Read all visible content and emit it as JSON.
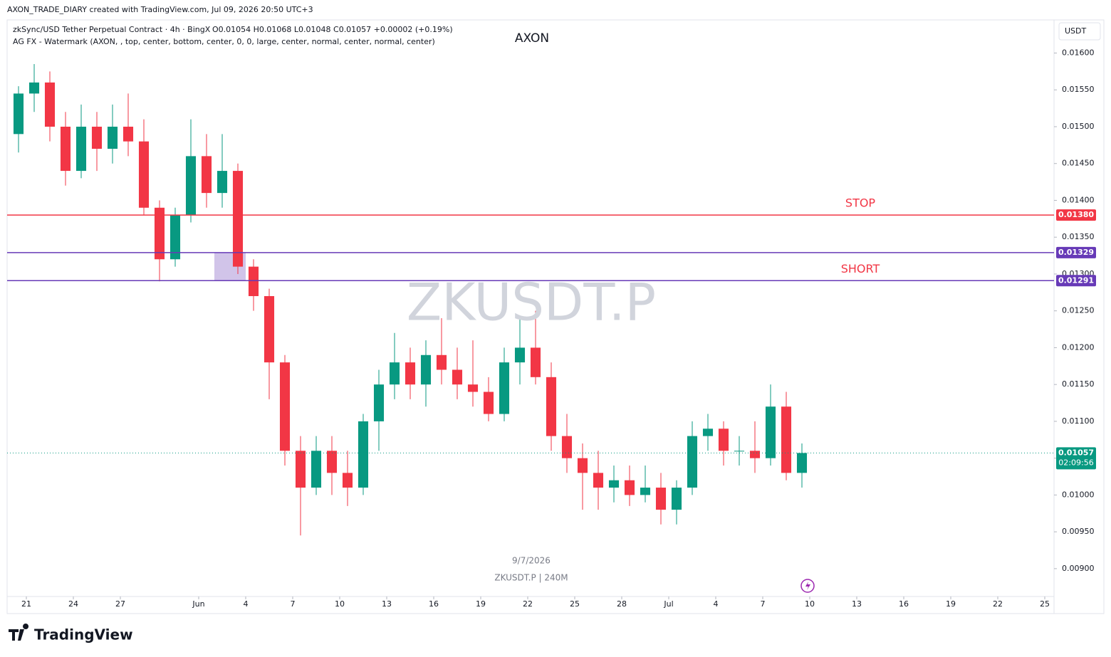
{
  "header": {
    "credit": "AXON_TRADE_DIARY created with TradingView.com, Jul 09, 2026 20:50 UTC+3",
    "symbol_line": "zkSync/USD Tether Perpetual Contract · 4h · BingX",
    "ohlc_line": "O0.01054 H0.01068 L0.01048 C0.01057 +0.00002 (+0.19%)",
    "indicator_line": "AG FX - Watermark (AXON, , top, center, bottom, center, 0, 0, large, center, normal, center, normal, center)",
    "watermark_top": "AXON",
    "watermark": "ZKUSDT.P",
    "watermark_date": "9/7/2026",
    "watermark_bottom": "ZKUSDT.P | 240M",
    "currency": "USDT",
    "logo": "TradingView"
  },
  "chart_data": {
    "type": "candlestick",
    "x": [
      "2026-05-20",
      "2026-05-21",
      "2026-05-22",
      "2026-05-23",
      "2026-05-24",
      "2026-05-25",
      "2026-05-26",
      "2026-05-27",
      "2026-05-28",
      "2026-05-29",
      "2026-05-30",
      "2026-05-31",
      "2026-06-01",
      "2026-06-02",
      "2026-06-03",
      "2026-06-04",
      "2026-06-05",
      "2026-06-06",
      "2026-06-07",
      "2026-06-08",
      "2026-06-09",
      "2026-06-10",
      "2026-06-11",
      "2026-06-12",
      "2026-06-13",
      "2026-06-14",
      "2026-06-15",
      "2026-06-16",
      "2026-06-17",
      "2026-06-18",
      "2026-06-19",
      "2026-06-20",
      "2026-06-21",
      "2026-06-22",
      "2026-06-23",
      "2026-06-24",
      "2026-06-25",
      "2026-06-26",
      "2026-06-27",
      "2026-06-28",
      "2026-06-29",
      "2026-06-30",
      "2026-07-01",
      "2026-07-02",
      "2026-07-03",
      "2026-07-04",
      "2026-07-05",
      "2026-07-06",
      "2026-07-07",
      "2026-07-08",
      "2026-07-09"
    ],
    "open": [
      0.0149,
      0.01545,
      0.0156,
      0.015,
      0.0144,
      0.015,
      0.0147,
      0.015,
      0.0148,
      0.0139,
      0.0132,
      0.0138,
      0.0146,
      0.0141,
      0.0144,
      0.0131,
      0.0127,
      0.0118,
      0.0106,
      0.0101,
      0.0106,
      0.0103,
      0.0101,
      0.011,
      0.0115,
      0.0118,
      0.0115,
      0.0119,
      0.0117,
      0.0115,
      0.0114,
      0.0111,
      0.0118,
      0.012,
      0.0116,
      0.0108,
      0.0105,
      0.0103,
      0.0101,
      0.0102,
      0.01,
      0.0101,
      0.0098,
      0.0101,
      0.0108,
      0.0109,
      0.0106,
      0.0106,
      0.0105,
      0.0112,
      0.0103
    ],
    "high": [
      0.01555,
      0.01585,
      0.01575,
      0.0152,
      0.0153,
      0.0152,
      0.0153,
      0.01545,
      0.0151,
      0.014,
      0.0139,
      0.0151,
      0.0149,
      0.0149,
      0.0145,
      0.0132,
      0.0128,
      0.0119,
      0.0108,
      0.0108,
      0.0108,
      0.0106,
      0.0111,
      0.0117,
      0.0122,
      0.012,
      0.0121,
      0.0124,
      0.012,
      0.0121,
      0.0116,
      0.012,
      0.0124,
      0.0125,
      0.0118,
      0.0111,
      0.0107,
      0.0106,
      0.0104,
      0.0104,
      0.0104,
      0.0103,
      0.0102,
      0.011,
      0.0111,
      0.011,
      0.0108,
      0.011,
      0.0115,
      0.0114,
      0.0107
    ],
    "low": [
      0.01465,
      0.0152,
      0.0148,
      0.0142,
      0.0143,
      0.0144,
      0.0145,
      0.0146,
      0.0138,
      0.0129,
      0.0131,
      0.0137,
      0.0139,
      0.0139,
      0.013,
      0.0125,
      0.0113,
      0.0104,
      0.00945,
      0.01,
      0.01,
      0.00985,
      0.01,
      0.0106,
      0.0113,
      0.0113,
      0.0112,
      0.0115,
      0.0113,
      0.0112,
      0.011,
      0.011,
      0.0115,
      0.0115,
      0.0106,
      0.0103,
      0.0098,
      0.0098,
      0.0099,
      0.00985,
      0.0099,
      0.0096,
      0.0096,
      0.01,
      0.0106,
      0.0104,
      0.0104,
      0.0103,
      0.0104,
      0.0102,
      0.0101
    ],
    "close": [
      0.01545,
      0.0156,
      0.015,
      0.0144,
      0.015,
      0.0147,
      0.015,
      0.0148,
      0.0139,
      0.0132,
      0.0138,
      0.0146,
      0.0141,
      0.0144,
      0.0131,
      0.0127,
      0.0118,
      0.0106,
      0.0101,
      0.0106,
      0.0103,
      0.0101,
      0.011,
      0.0115,
      0.0118,
      0.0115,
      0.0119,
      0.0117,
      0.0115,
      0.0114,
      0.0111,
      0.0118,
      0.012,
      0.0116,
      0.0108,
      0.0105,
      0.0103,
      0.0101,
      0.0102,
      0.01,
      0.0101,
      0.0098,
      0.0101,
      0.0108,
      0.0109,
      0.0106,
      0.0106,
      0.0105,
      0.0112,
      0.0103,
      0.01057
    ],
    "up_color": "#089981",
    "down_color": "#f23645",
    "xlim": [
      "2026-05-20",
      "2026-07-25"
    ],
    "xticks": [
      {
        "value": "2026-05-21",
        "label": "21"
      },
      {
        "value": "2026-05-24",
        "label": "24"
      },
      {
        "value": "2026-05-27",
        "label": "27"
      },
      {
        "value": "2026-06-01",
        "label": "Jun"
      },
      {
        "value": "2026-06-04",
        "label": "4"
      },
      {
        "value": "2026-06-07",
        "label": "7"
      },
      {
        "value": "2026-06-10",
        "label": "10"
      },
      {
        "value": "2026-06-13",
        "label": "13"
      },
      {
        "value": "2026-06-16",
        "label": "16"
      },
      {
        "value": "2026-06-19",
        "label": "19"
      },
      {
        "value": "2026-06-22",
        "label": "22"
      },
      {
        "value": "2026-06-25",
        "label": "25"
      },
      {
        "value": "2026-06-28",
        "label": "28"
      },
      {
        "value": "2026-07-01",
        "label": "Jul"
      },
      {
        "value": "2026-07-04",
        "label": "4"
      },
      {
        "value": "2026-07-07",
        "label": "7"
      },
      {
        "value": "2026-07-10",
        "label": "10"
      },
      {
        "value": "2026-07-13",
        "label": "13"
      },
      {
        "value": "2026-07-16",
        "label": "16"
      },
      {
        "value": "2026-07-19",
        "label": "19"
      },
      {
        "value": "2026-07-22",
        "label": "22"
      },
      {
        "value": "2026-07-25",
        "label": "25"
      }
    ],
    "ylim": [
      0.00839,
      0.01643
    ],
    "yticks": [
      {
        "value": 0.016,
        "label": "0.01600"
      },
      {
        "value": 0.0155,
        "label": "0.01550"
      },
      {
        "value": 0.015,
        "label": "0.01500"
      },
      {
        "value": 0.0145,
        "label": "0.01450"
      },
      {
        "value": 0.014,
        "label": "0.01400"
      },
      {
        "value": 0.0135,
        "label": "0.01350"
      },
      {
        "value": 0.013,
        "label": "0.01300"
      },
      {
        "value": 0.0125,
        "label": "0.01250"
      },
      {
        "value": 0.012,
        "label": "0.01200"
      },
      {
        "value": 0.0115,
        "label": "0.01150"
      },
      {
        "value": 0.011,
        "label": "0.01100"
      },
      {
        "value": 0.0105,
        "label": "0.01050"
      },
      {
        "value": 0.01,
        "label": "0.01000"
      },
      {
        "value": 0.0095,
        "label": "0.00950"
      },
      {
        "value": 0.009,
        "label": "0.00900"
      }
    ],
    "levels": [
      {
        "value": 0.0138,
        "label": "0.01380",
        "color": "#f23645",
        "name": "STOP"
      },
      {
        "value": 0.01329,
        "label": "0.01329",
        "color": "#673ab7"
      },
      {
        "value": 0.01291,
        "label": "0.01291",
        "color": "#673ab7",
        "name": "SHORT"
      }
    ],
    "zone": {
      "from": "2026-06-02",
      "to": "2026-06-04",
      "color": "#b39ddb"
    },
    "last_price": {
      "value": 0.01057,
      "label": "0.01057",
      "countdown": "02:09:56",
      "color": "#089981"
    }
  }
}
